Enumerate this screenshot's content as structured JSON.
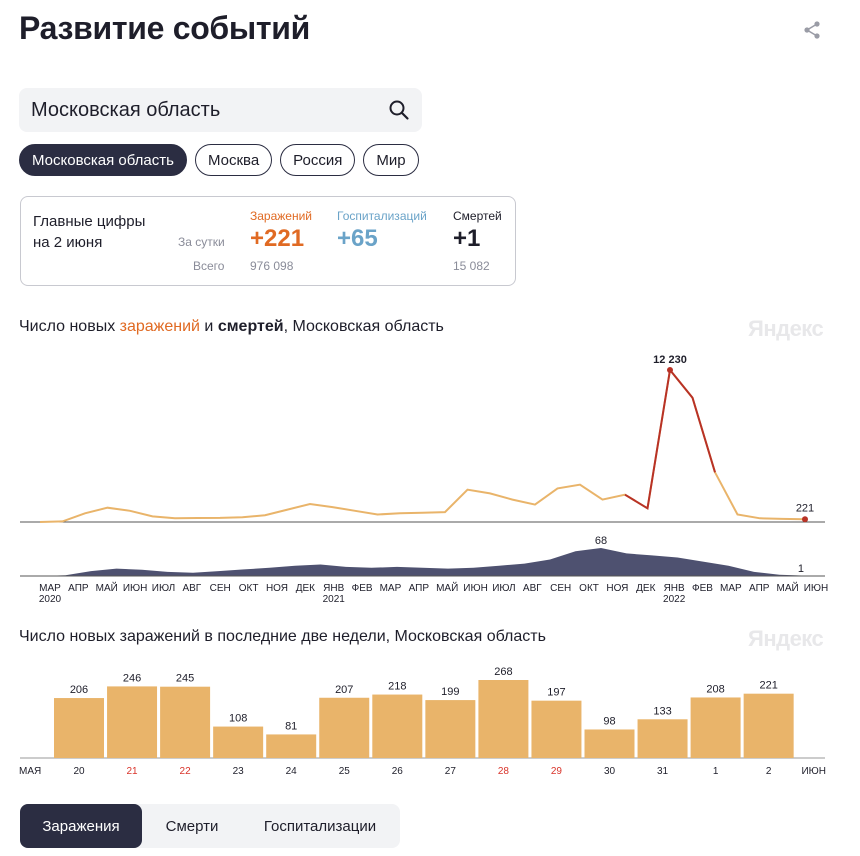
{
  "title": "Развитие событий",
  "search": {
    "value": "Московская область"
  },
  "chips": [
    "Московская область",
    "Москва",
    "Россия",
    "Мир"
  ],
  "summary": {
    "header": [
      "Главные цифры",
      "на 2 июня"
    ],
    "row_daily": "За сутки",
    "row_total": "Всего",
    "infections": {
      "label": "Заражений",
      "daily": "+221",
      "total": "976 098"
    },
    "hospitalizations": {
      "label": "Госпитализаций",
      "daily": "+65",
      "total": ""
    },
    "deaths": {
      "label": "Смертей",
      "daily": "+1",
      "total": "15 082"
    }
  },
  "chart1_title": {
    "prefix": "Число новых ",
    "infections": "заражений",
    "mid": " и ",
    "deaths": "смертей",
    "suffix": ", Московская область"
  },
  "chart2_title": "Число новых заражений в последние две недели, Московская область",
  "brand": "Яндекс",
  "colors": {
    "infections": "#e9b46a",
    "infections_peak": "#b83226",
    "deaths": "#4e5170",
    "weekend": "#d9342b",
    "dark": "#2b2d42"
  },
  "chart_data": [
    {
      "type": "area",
      "title": "Число новых заражений и смертей, Московская область",
      "x_ticks": [
        "МАР",
        "АПР",
        "МАЙ",
        "ИЮН",
        "ИЮЛ",
        "АВГ",
        "СЕН",
        "ОКТ",
        "НОЯ",
        "ДЕК",
        "ЯНВ",
        "ФЕВ",
        "МАР",
        "АПР",
        "МАЙ",
        "ИЮН",
        "ИЮЛ",
        "АВГ",
        "СЕН",
        "ОКТ",
        "НОЯ",
        "ДЕК",
        "ЯНВ",
        "ФЕВ",
        "МАР",
        "АПР",
        "МАЙ",
        "ИЮН"
      ],
      "year_labels": [
        {
          "at": 0,
          "text": "2020"
        },
        {
          "at": 10,
          "text": "2021"
        },
        {
          "at": 22,
          "text": "2022"
        }
      ],
      "series": [
        {
          "name": "заражений",
          "values": [
            0,
            50,
            700,
            1150,
            900,
            450,
            300,
            320,
            330,
            380,
            550,
            1000,
            1450,
            1200,
            900,
            600,
            700,
            750,
            800,
            2600,
            2300,
            1800,
            1400,
            2700,
            3000,
            1800,
            2200,
            1100,
            12230,
            10000,
            4000,
            600,
            300,
            250,
            221
          ]
        },
        {
          "name": "смертей",
          "values": [
            0,
            2,
            12,
            18,
            15,
            10,
            8,
            12,
            16,
            20,
            25,
            28,
            22,
            20,
            22,
            20,
            18,
            20,
            25,
            30,
            40,
            60,
            68,
            55,
            50,
            45,
            35,
            25,
            10,
            3,
            1
          ]
        }
      ],
      "annotations": [
        {
          "series": "заражений",
          "text": "12 230"
        },
        {
          "series": "заражений",
          "text": "221"
        },
        {
          "series": "смертей",
          "text": "68"
        },
        {
          "series": "смертей",
          "text": "1"
        }
      ]
    },
    {
      "type": "bar",
      "title": "Число новых заражений в последние две недели, Московская область",
      "categories": [
        "20",
        "21",
        "22",
        "23",
        "24",
        "25",
        "26",
        "27",
        "28",
        "29",
        "30",
        "31",
        "1",
        "2"
      ],
      "values": [
        206,
        246,
        245,
        108,
        81,
        207,
        218,
        199,
        268,
        197,
        98,
        133,
        208,
        221
      ],
      "weekend": [
        false,
        true,
        true,
        false,
        false,
        false,
        false,
        false,
        true,
        true,
        false,
        false,
        false,
        false
      ],
      "left_month": "МАЯ",
      "right_month": "ИЮН"
    }
  ],
  "tabs": [
    "Заражения",
    "Смерти",
    "Госпитализации"
  ]
}
